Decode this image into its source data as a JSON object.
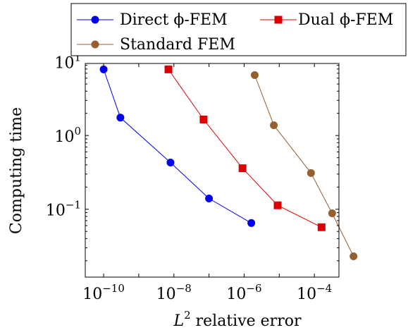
{
  "chart_data": {
    "type": "line",
    "title": "",
    "xlabel": {
      "base": "L",
      "sup": "2",
      "rest": " relative error"
    },
    "ylabel": "Computing time",
    "x_scale": "log",
    "y_scale": "log",
    "xlim": [
      3e-11,
      0.0005
    ],
    "ylim": [
      0.012,
      9.5
    ],
    "grid": false,
    "legend_position": "top",
    "x_ticks": [
      {
        "value": 1e-10,
        "base": "10",
        "exp": "−10"
      },
      {
        "value": 1e-08,
        "base": "10",
        "exp": "−8"
      },
      {
        "value": 1e-06,
        "base": "10",
        "exp": "−6"
      },
      {
        "value": 0.0001,
        "base": "10",
        "exp": "−4"
      }
    ],
    "y_ticks": [
      {
        "value": 0.1,
        "base": "10",
        "exp": "−1"
      },
      {
        "value": 1,
        "base": "10",
        "exp": "0"
      },
      {
        "value": 10,
        "base": "10",
        "exp": "1"
      }
    ],
    "series": [
      {
        "name": "Direct ϕ-FEM",
        "color": "#0000ee",
        "marker": "circle",
        "x": [
          1e-10,
          3e-10,
          8e-09,
          1e-07,
          1.6e-06
        ],
        "y": [
          7.9,
          1.75,
          0.43,
          0.14,
          0.065
        ]
      },
      {
        "name": "Dual ϕ-FEM",
        "color": "#dd0000",
        "marker": "square",
        "x": [
          7e-09,
          7e-08,
          9e-07,
          9e-06,
          0.00016
        ],
        "y": [
          7.9,
          1.65,
          0.36,
          0.113,
          0.057
        ]
      },
      {
        "name": "Standard FEM",
        "color": "#946030",
        "marker": "circle",
        "x": [
          2e-06,
          7e-06,
          8e-05,
          0.00032,
          0.0013
        ],
        "y": [
          6.6,
          1.38,
          0.31,
          0.088,
          0.023
        ]
      }
    ]
  }
}
